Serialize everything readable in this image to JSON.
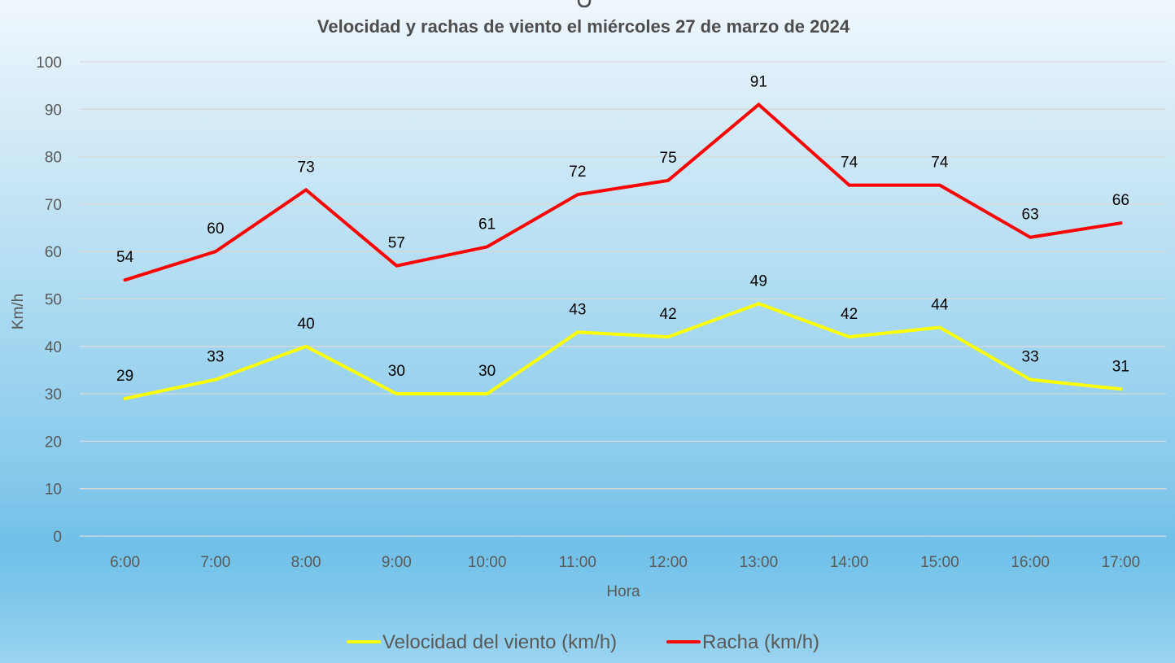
{
  "chart_data": {
    "type": "line",
    "title": "Velocidad y rachas de viento el miércoles 27 de marzo de 2024",
    "xlabel": "Hora",
    "ylabel": "Km/h",
    "ylim": [
      0,
      100
    ],
    "yticks": [
      "0",
      "10",
      "20",
      "30",
      "40",
      "50",
      "60",
      "70",
      "80",
      "90",
      "100"
    ],
    "grid": true,
    "legend_position": "bottom",
    "categories": [
      "6:00",
      "7:00",
      "8:00",
      "9:00",
      "10:00",
      "11:00",
      "12:00",
      "13:00",
      "14:00",
      "15:00",
      "16:00",
      "17:00"
    ],
    "series": [
      {
        "name": "Velocidad del viento (km/h)",
        "color": "#ffff00",
        "values": [
          29,
          33,
          40,
          30,
          30,
          43,
          42,
          49,
          42,
          44,
          33,
          31
        ],
        "labels": [
          "29",
          "33",
          "40",
          "30",
          "30",
          "43",
          "42",
          "49",
          "42",
          "44",
          "33",
          "31"
        ]
      },
      {
        "name": "Racha (km/h)",
        "color": "#ff0000",
        "values": [
          54,
          60,
          73,
          57,
          61,
          72,
          75,
          91,
          74,
          74,
          63,
          66
        ],
        "labels": [
          "54",
          "60",
          "73",
          "57",
          "61",
          "72",
          "75",
          "91",
          "74",
          "74",
          "63",
          "66"
        ]
      }
    ]
  }
}
